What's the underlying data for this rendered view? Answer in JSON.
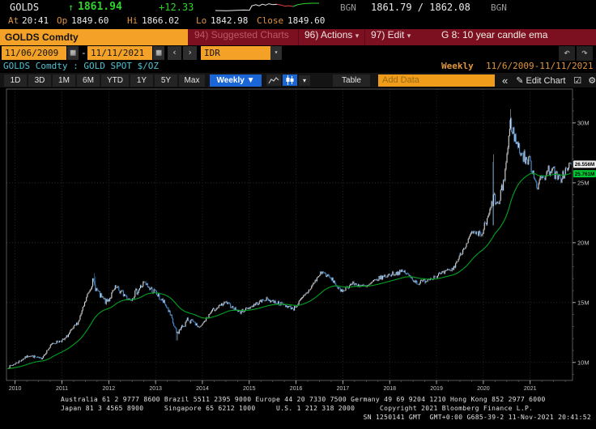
{
  "quote": {
    "ticker": "GOLDS",
    "arrow": "↑",
    "last": "1861.94",
    "change": "+12.33",
    "source_left": "BGN",
    "bid_ask": "1861.79 / 1862.08",
    "source_right": "BGN",
    "at_label": "At",
    "at_value": "20:41",
    "op_label": "Op",
    "op_value": "1849.60",
    "hi_label": "Hi",
    "hi_value": "1866.02",
    "lo_label": "Lo",
    "lo_value": "1842.98",
    "close_label": "Close",
    "close_value": "1849.60"
  },
  "titlebar": {
    "security": "GOLDS Comdty",
    "suggested_charts": "94) Suggested Charts",
    "actions": "96) Actions",
    "edit": "97) Edit",
    "chart_title": "G 8: 10 year candle ema"
  },
  "controls": {
    "date_from": "11/06/2009",
    "date_to": "11/11/2021",
    "date_sep": "-",
    "prev": "‹",
    "next": "›",
    "currency": "IDR",
    "subtitle": "GOLDS Comdty : GOLD SPOT $/OZ",
    "period_label": "Weekly",
    "range_label": "11/6/2009-11/11/2021"
  },
  "toolbar": {
    "ranges": [
      "1D",
      "3D",
      "1M",
      "6M",
      "YTD",
      "1Y",
      "5Y",
      "Max"
    ],
    "frequency": "Weekly ▼",
    "freq_more": "▾",
    "table": "Table",
    "add_data_placeholder": "Add Data",
    "collapse": "«",
    "edit_chart": "✎ Edit Chart",
    "annotate_icon": "☑",
    "settings_icon": "⚙"
  },
  "sparkline": {
    "white": [
      [
        2,
        12
      ],
      [
        16,
        12.3
      ],
      [
        28,
        11.8
      ],
      [
        38,
        11.4
      ],
      [
        44,
        11.7
      ],
      [
        47,
        6.2
      ],
      [
        52,
        4.8
      ],
      [
        56,
        6.2
      ],
      [
        60,
        4.2
      ],
      [
        64,
        5.4
      ],
      [
        68,
        3.6
      ],
      [
        73,
        4.8
      ],
      [
        78,
        4.2
      ]
    ],
    "red": [
      [
        78,
        4.2
      ],
      [
        83,
        5.2
      ],
      [
        88,
        6.6
      ],
      [
        93,
        6.1
      ],
      [
        98,
        7.0
      ]
    ],
    "green": [
      [
        98,
        7.0
      ],
      [
        103,
        5.0
      ],
      [
        108,
        4.0
      ],
      [
        114,
        3.3
      ],
      [
        122,
        3.0
      ],
      [
        130,
        3.0
      ]
    ]
  },
  "chart_data": {
    "type": "candlestick",
    "title": "G 8: 10 year candle ema",
    "security": "GOLDS Comdty : GOLD SPOT $/OZ",
    "frequency": "Weekly",
    "currency": "IDR",
    "x_range": [
      2009.85,
      2021.87
    ],
    "ylim": [
      8.5,
      32.83
    ],
    "x_ticks": [
      {
        "v": 2010,
        "label": "2010"
      },
      {
        "v": 2011,
        "label": "2011"
      },
      {
        "v": 2012,
        "label": "2012"
      },
      {
        "v": 2013,
        "label": "2013"
      },
      {
        "v": 2014,
        "label": "2014"
      },
      {
        "v": 2015,
        "label": "2015"
      },
      {
        "v": 2016,
        "label": "2016"
      },
      {
        "v": 2017,
        "label": "2017"
      },
      {
        "v": 2018,
        "label": "2018"
      },
      {
        "v": 2019,
        "label": "2019"
      },
      {
        "v": 2020,
        "label": "2020"
      },
      {
        "v": 2021,
        "label": "2021"
      }
    ],
    "y_ticks": [
      {
        "v": 10,
        "label": "10M"
      },
      {
        "v": 15,
        "label": "15M"
      },
      {
        "v": 20,
        "label": "20M"
      },
      {
        "v": 25,
        "label": "25M"
      },
      {
        "v": 30,
        "label": "30M"
      }
    ],
    "last_price": {
      "value": 26.556,
      "label": "26.556M"
    },
    "ema_last": {
      "value": 25.761,
      "label": "25.761M"
    },
    "ema_period_weeks": 52,
    "weeks": 626,
    "colors": {
      "up": "#d9d9d9",
      "down": "#4a8fd4",
      "ema": "#00a321",
      "grid": "#424242",
      "frame": "#6f6f6f",
      "axis_text": "#c9c9c9",
      "last_box_bg": "#ececec",
      "ema_box_bg": "#00c832"
    },
    "price_keypoints": [
      [
        2009.85,
        9.6
      ],
      [
        2010.0,
        9.9
      ],
      [
        2010.3,
        10.6
      ],
      [
        2010.55,
        10.3
      ],
      [
        2010.8,
        11.6
      ],
      [
        2011.05,
        11.9
      ],
      [
        2011.35,
        13.4
      ],
      [
        2011.65,
        16.8
      ],
      [
        2011.8,
        15.6
      ],
      [
        2011.95,
        15.0
      ],
      [
        2012.15,
        16.2
      ],
      [
        2012.45,
        15.3
      ],
      [
        2012.75,
        16.6
      ],
      [
        2013.0,
        15.8
      ],
      [
        2013.25,
        14.6
      ],
      [
        2013.45,
        12.4
      ],
      [
        2013.7,
        13.6
      ],
      [
        2013.95,
        12.9
      ],
      [
        2014.2,
        14.3
      ],
      [
        2014.5,
        15.0
      ],
      [
        2014.8,
        14.2
      ],
      [
        2015.05,
        14.7
      ],
      [
        2015.35,
        15.3
      ],
      [
        2015.6,
        15.0
      ],
      [
        2015.95,
        14.5
      ],
      [
        2016.25,
        15.9
      ],
      [
        2016.55,
        17.6
      ],
      [
        2016.8,
        16.8
      ],
      [
        2016.95,
        15.9
      ],
      [
        2017.2,
        16.6
      ],
      [
        2017.5,
        16.3
      ],
      [
        2017.75,
        17.0
      ],
      [
        2018.05,
        17.4
      ],
      [
        2018.3,
        17.6
      ],
      [
        2018.6,
        16.6
      ],
      [
        2018.85,
        17.0
      ],
      [
        2019.1,
        17.4
      ],
      [
        2019.35,
        17.8
      ],
      [
        2019.55,
        19.3
      ],
      [
        2019.75,
        20.8
      ],
      [
        2019.95,
        20.6
      ],
      [
        2020.1,
        22.0
      ],
      [
        2020.22,
        23.8
      ],
      [
        2020.32,
        23.0
      ],
      [
        2020.45,
        25.5
      ],
      [
        2020.58,
        30.0
      ],
      [
        2020.7,
        28.4
      ],
      [
        2020.85,
        27.2
      ],
      [
        2021.0,
        26.7
      ],
      [
        2021.15,
        24.8
      ],
      [
        2021.3,
        25.6
      ],
      [
        2021.45,
        26.3
      ],
      [
        2021.6,
        25.2
      ],
      [
        2021.75,
        25.9
      ],
      [
        2021.87,
        26.556
      ]
    ],
    "volatility_windows": [
      {
        "from": 2011.5,
        "to": 2013.8,
        "extra": 0.008
      },
      {
        "from": 2019.9,
        "to": 2021.9,
        "extra": 0.009
      }
    ],
    "wick_events": [
      {
        "t": 2020.2,
        "high_mult": 1.14,
        "low_mult": 0.93
      },
      {
        "t": 2013.45,
        "low_mult": 0.95
      },
      {
        "t": 2011.7,
        "high_mult": 1.04
      },
      {
        "t": 2020.58,
        "high_mult": 1.025
      }
    ]
  },
  "footer": {
    "line1": "Australia 61 2 9777 8600 Brazil 5511 2395 9000 Europe 44 20 7330 7500 Germany 49 69 9204 1210 Hong Kong 852 2977 6000",
    "line2": "Japan 81 3 4565 8900     Singapore 65 6212 1000     U.S. 1 212 318 2000      Copyright 2021 Bloomberg Finance L.P.",
    "line3": "SN 1250141 GMT  GMT+0:00 G685-39-2 11-Nov-2021 20:41:52"
  }
}
